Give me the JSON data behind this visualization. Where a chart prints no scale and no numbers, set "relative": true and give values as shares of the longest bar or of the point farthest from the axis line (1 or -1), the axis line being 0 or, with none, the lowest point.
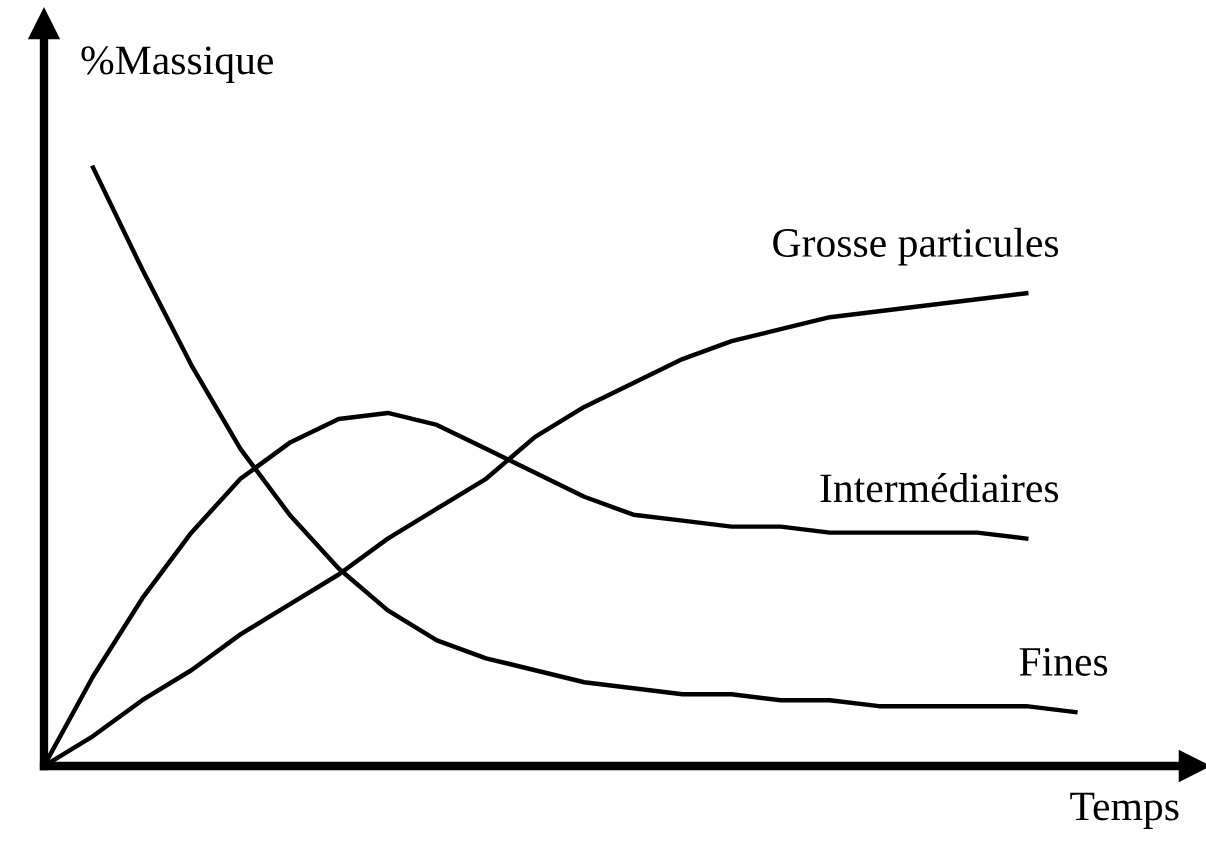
{
  "chart_data": {
    "type": "line",
    "relative": true,
    "xlabel": "Temps",
    "ylabel": "%Massique",
    "legend": false,
    "marker": "none",
    "line_style": "solid",
    "categories": [
      null,
      null,
      null,
      null,
      null,
      null,
      null,
      null,
      null,
      null,
      null,
      null,
      null,
      null,
      null,
      null,
      null,
      null,
      null,
      null,
      null,
      null
    ],
    "series": [
      {
        "name": "Grosse particules",
        "color": "#000000",
        "values": [
          0,
          0.05,
          0.11,
          0.16,
          0.22,
          0.27,
          0.32,
          0.38,
          0.43,
          0.48,
          0.55,
          0.6,
          0.64,
          0.68,
          0.71,
          0.73,
          0.75,
          0.76,
          0.77,
          0.78,
          0.79,
          null
        ]
      },
      {
        "name": "Intermédiaires",
        "color": "#000000",
        "values": [
          0,
          0.15,
          0.28,
          0.39,
          0.48,
          0.54,
          0.58,
          0.59,
          0.57,
          0.53,
          0.49,
          0.45,
          0.42,
          0.41,
          0.4,
          0.4,
          0.39,
          0.39,
          0.39,
          0.39,
          0.38,
          null
        ]
      },
      {
        "name": "Fines",
        "color": "#000000",
        "values": [
          null,
          1,
          0.83,
          0.67,
          0.53,
          0.42,
          0.33,
          0.26,
          0.21,
          0.18,
          0.16,
          0.14,
          0.13,
          0.12,
          0.12,
          0.11,
          0.11,
          0.1,
          0.1,
          0.1,
          0.1,
          0.09
        ]
      }
    ]
  }
}
